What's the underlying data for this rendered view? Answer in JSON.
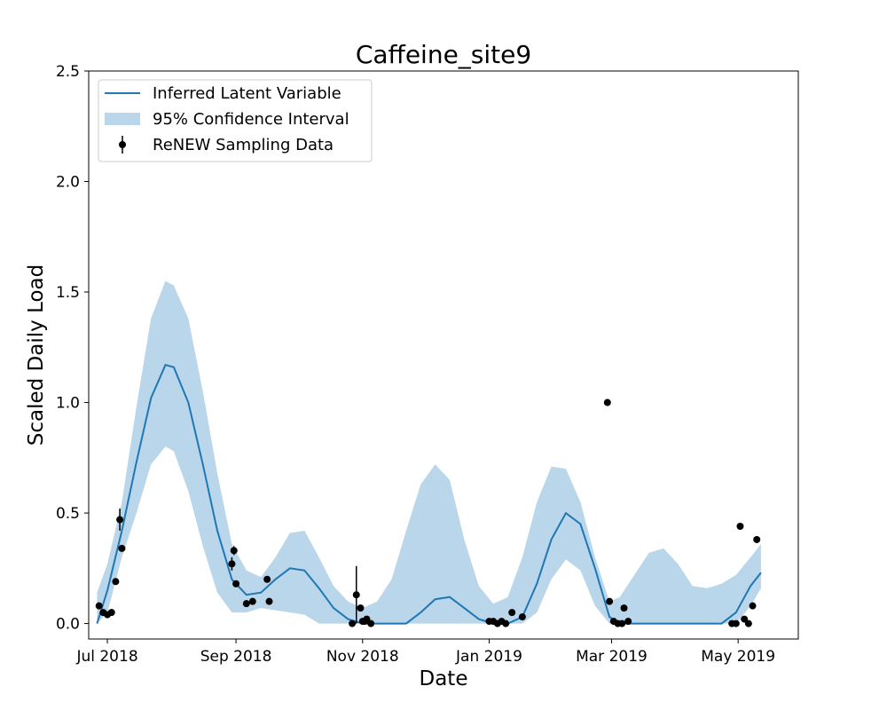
{
  "chart_data": {
    "type": "line",
    "title": "Caffeine_site9",
    "xlabel": "Date",
    "ylabel": "Scaled Daily Load",
    "xlim": [
      "2018-06-22",
      "2019-05-30"
    ],
    "ylim": [
      -0.07,
      2.5
    ],
    "grid": false,
    "legend_position": "top-left",
    "x_ticks": [
      {
        "date": "2018-07-01",
        "label": "Jul 2018"
      },
      {
        "date": "2018-09-01",
        "label": "Sep 2018"
      },
      {
        "date": "2018-11-01",
        "label": "Nov 2018"
      },
      {
        "date": "2019-01-01",
        "label": "Jan 2019"
      },
      {
        "date": "2019-03-01",
        "label": "Mar 2019"
      },
      {
        "date": "2019-05-01",
        "label": "May 2019"
      }
    ],
    "y_ticks": [
      {
        "value": 0.0,
        "label": "0.0"
      },
      {
        "value": 0.5,
        "label": "0.5"
      },
      {
        "value": 1.0,
        "label": "1.0"
      },
      {
        "value": 1.5,
        "label": "1.5"
      },
      {
        "value": 2.0,
        "label": "2.0"
      },
      {
        "value": 2.5,
        "label": "2.5"
      }
    ],
    "colors": {
      "line": "#1f77b4",
      "band": "#bad6ea",
      "points": "#000000"
    },
    "series": [
      {
        "name": "Inferred Latent Variable",
        "type": "line",
        "x": [
          "2018-06-26",
          "2018-07-01",
          "2018-07-08",
          "2018-07-15",
          "2018-07-22",
          "2018-07-29",
          "2018-08-02",
          "2018-08-09",
          "2018-08-16",
          "2018-08-23",
          "2018-08-30",
          "2018-09-06",
          "2018-09-13",
          "2018-09-20",
          "2018-09-27",
          "2018-10-04",
          "2018-10-11",
          "2018-10-18",
          "2018-10-25",
          "2018-11-01",
          "2018-11-08",
          "2018-11-15",
          "2018-11-22",
          "2018-11-29",
          "2018-12-06",
          "2018-12-13",
          "2018-12-20",
          "2018-12-27",
          "2019-01-03",
          "2019-01-10",
          "2019-01-17",
          "2019-01-24",
          "2019-01-31",
          "2019-02-07",
          "2019-02-14",
          "2019-02-21",
          "2019-02-28",
          "2019-03-05",
          "2019-03-12",
          "2019-03-19",
          "2019-03-26",
          "2019-04-02",
          "2019-04-09",
          "2019-04-16",
          "2019-04-23",
          "2019-04-30",
          "2019-05-07",
          "2019-05-12"
        ],
        "y": [
          0.0,
          0.15,
          0.42,
          0.73,
          1.02,
          1.17,
          1.16,
          1.0,
          0.72,
          0.42,
          0.2,
          0.13,
          0.14,
          0.2,
          0.25,
          0.24,
          0.16,
          0.07,
          0.02,
          0.0,
          0.0,
          0.0,
          0.0,
          0.05,
          0.11,
          0.12,
          0.07,
          0.02,
          0.0,
          0.0,
          0.03,
          0.18,
          0.38,
          0.5,
          0.45,
          0.25,
          0.03,
          0.0,
          0.0,
          0.0,
          0.0,
          0.0,
          0.0,
          0.0,
          0.0,
          0.05,
          0.17,
          0.23
        ]
      },
      {
        "name": "95% Confidence Interval",
        "type": "band",
        "x": [
          "2018-06-26",
          "2018-07-01",
          "2018-07-08",
          "2018-07-15",
          "2018-07-22",
          "2018-07-29",
          "2018-08-02",
          "2018-08-09",
          "2018-08-16",
          "2018-08-23",
          "2018-08-30",
          "2018-09-06",
          "2018-09-13",
          "2018-09-20",
          "2018-09-27",
          "2018-10-04",
          "2018-10-11",
          "2018-10-18",
          "2018-10-25",
          "2018-11-01",
          "2018-11-08",
          "2018-11-15",
          "2018-11-22",
          "2018-11-29",
          "2018-12-06",
          "2018-12-13",
          "2018-12-20",
          "2018-12-27",
          "2019-01-03",
          "2019-01-10",
          "2019-01-17",
          "2019-01-24",
          "2019-01-31",
          "2019-02-07",
          "2019-02-14",
          "2019-02-21",
          "2019-02-28",
          "2019-03-05",
          "2019-03-12",
          "2019-03-19",
          "2019-03-26",
          "2019-04-02",
          "2019-04-09",
          "2019-04-16",
          "2019-04-23",
          "2019-04-30",
          "2019-05-07",
          "2019-05-12"
        ],
        "lower": [
          0.0,
          0.05,
          0.3,
          0.5,
          0.72,
          0.8,
          0.78,
          0.6,
          0.35,
          0.14,
          0.05,
          0.05,
          0.07,
          0.06,
          0.05,
          0.04,
          0.0,
          0.0,
          0.0,
          0.0,
          0.0,
          0.0,
          0.0,
          0.0,
          0.0,
          0.0,
          0.0,
          0.0,
          0.0,
          0.0,
          0.0,
          0.05,
          0.2,
          0.29,
          0.24,
          0.08,
          0.0,
          0.0,
          0.0,
          0.0,
          0.0,
          0.0,
          0.0,
          0.0,
          0.0,
          0.0,
          0.08,
          0.16
        ],
        "upper": [
          0.14,
          0.27,
          0.55,
          0.98,
          1.38,
          1.55,
          1.53,
          1.38,
          1.05,
          0.68,
          0.36,
          0.24,
          0.21,
          0.3,
          0.41,
          0.42,
          0.3,
          0.17,
          0.1,
          0.07,
          0.1,
          0.2,
          0.42,
          0.63,
          0.72,
          0.65,
          0.38,
          0.17,
          0.09,
          0.12,
          0.3,
          0.55,
          0.71,
          0.7,
          0.55,
          0.3,
          0.1,
          0.12,
          0.22,
          0.32,
          0.34,
          0.27,
          0.17,
          0.16,
          0.18,
          0.22,
          0.3,
          0.36
        ]
      },
      {
        "name": "ReNEW Sampling Data",
        "type": "scatter",
        "x": [
          "2018-06-27",
          "2018-06-29",
          "2018-07-01",
          "2018-07-03",
          "2018-07-05",
          "2018-07-07",
          "2018-07-08",
          "2018-08-30",
          "2018-08-31",
          "2018-09-01",
          "2018-09-06",
          "2018-09-09",
          "2018-09-16",
          "2018-09-17",
          "2018-10-27",
          "2018-10-29",
          "2018-10-31",
          "2018-11-01",
          "2018-11-02",
          "2018-11-03",
          "2018-11-05",
          "2019-01-01",
          "2019-01-03",
          "2019-01-05",
          "2019-01-07",
          "2019-01-09",
          "2019-01-12",
          "2019-01-17",
          "2019-02-27",
          "2019-02-28",
          "2019-03-02",
          "2019-03-04",
          "2019-03-06",
          "2019-03-07",
          "2019-03-09",
          "2019-04-28",
          "2019-04-30",
          "2019-05-02",
          "2019-05-04",
          "2019-05-06",
          "2019-05-08",
          "2019-05-10"
        ],
        "y": [
          0.08,
          0.05,
          0.04,
          0.05,
          0.19,
          0.47,
          0.34,
          0.27,
          0.33,
          0.18,
          0.09,
          0.1,
          0.2,
          0.1,
          0.0,
          0.13,
          0.07,
          0.01,
          0.01,
          0.02,
          0.0,
          0.01,
          0.01,
          0.0,
          0.01,
          0.0,
          0.05,
          0.03,
          1.0,
          0.1,
          0.01,
          0.0,
          0.0,
          0.07,
          0.01,
          0.0,
          0.0,
          0.44,
          0.02,
          0.0,
          0.08,
          0.38
        ],
        "yerr": [
          0,
          0,
          0,
          0,
          0,
          0.05,
          0,
          0.03,
          0.02,
          0,
          0,
          0,
          0,
          0,
          0,
          0.13,
          0,
          0,
          0,
          0,
          0,
          0,
          0,
          0,
          0,
          0,
          0,
          0,
          0,
          0,
          0,
          0,
          0,
          0,
          0,
          0,
          0,
          0,
          0,
          0,
          0,
          0
        ]
      }
    ]
  }
}
